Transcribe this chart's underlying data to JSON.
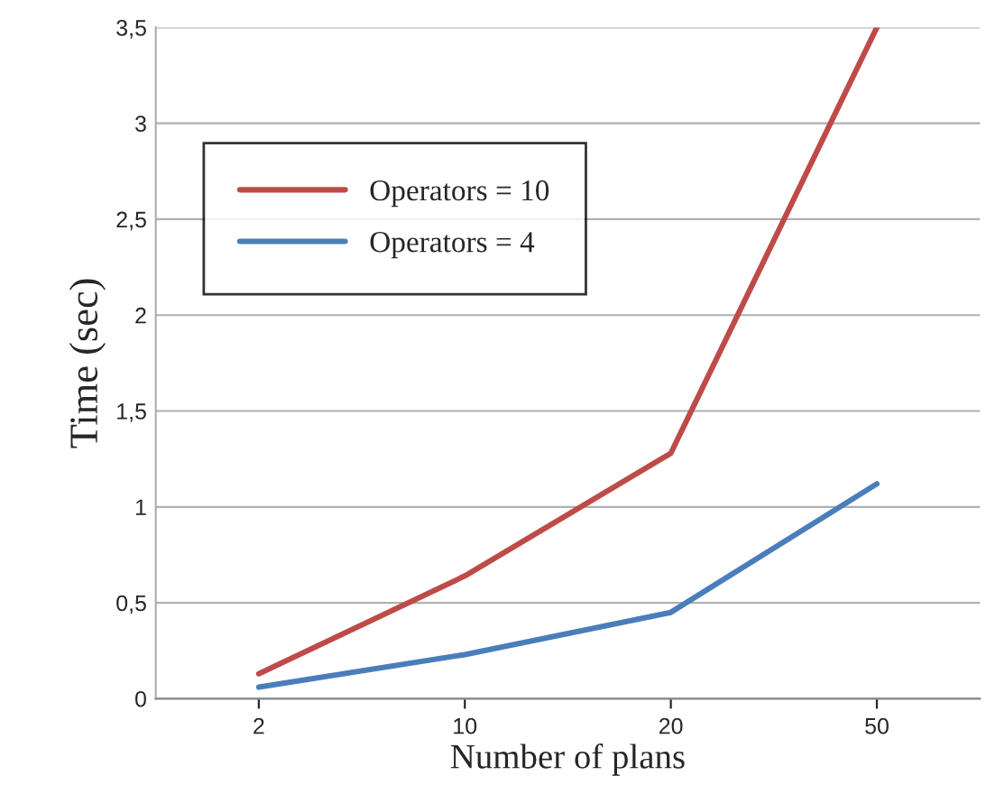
{
  "chart_data": {
    "type": "line",
    "xlabel": "Number of plans",
    "ylabel": "Time (sec)",
    "categories": [
      "2",
      "10",
      "20",
      "50"
    ],
    "series": [
      {
        "name": "Operators = 10",
        "color": "#be4b48",
        "values": [
          0.13,
          0.64,
          1.28,
          3.5
        ]
      },
      {
        "name": "Operators = 4",
        "color": "#4a7ebb",
        "values": [
          0.06,
          0.23,
          0.45,
          1.12
        ]
      }
    ],
    "ylim": [
      0,
      3.5
    ],
    "yticks": [
      0,
      {
        "value": 0.5,
        "label": "0,5"
      },
      1,
      {
        "value": 1.5,
        "label": "1,5"
      },
      2,
      {
        "value": 2.5,
        "label": "2,5"
      },
      3,
      {
        "value": 3.5,
        "label": "3,5"
      }
    ],
    "grid": "y",
    "legend": "top left",
    "marker": "none",
    "line_style": "solid"
  }
}
